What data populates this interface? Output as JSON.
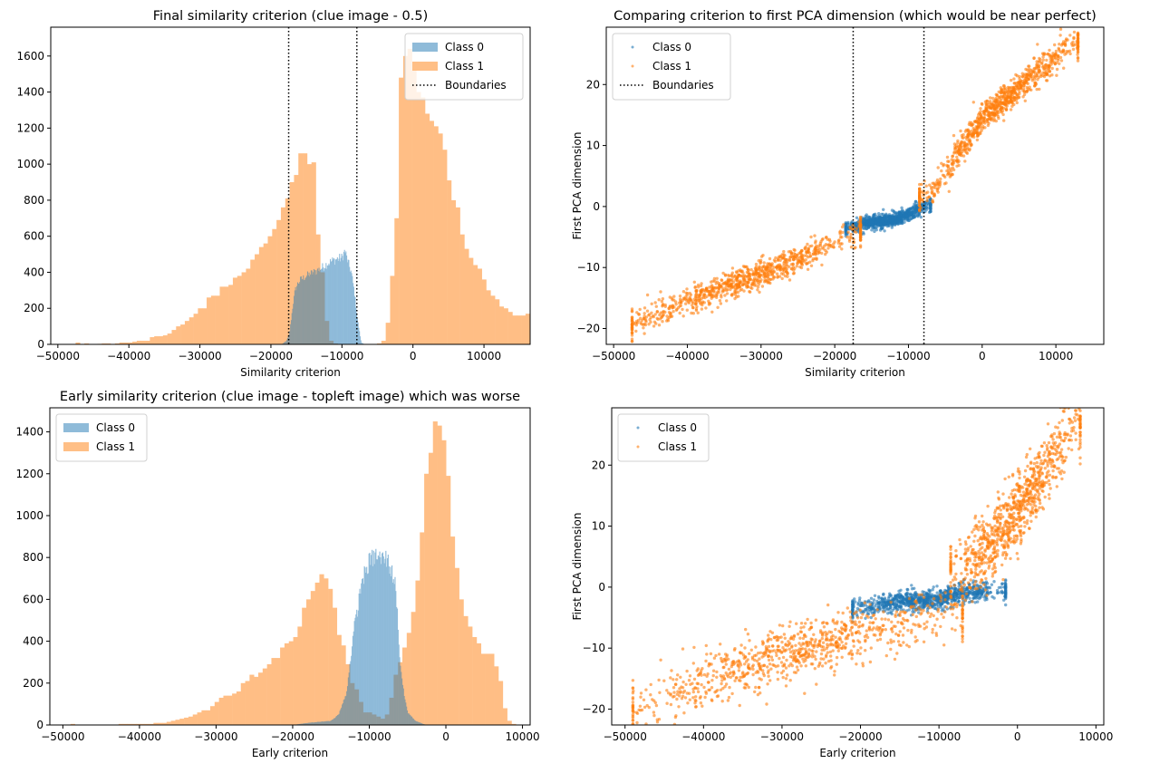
{
  "figure": {
    "layout": "2x2 subplots"
  },
  "colors": {
    "class0": "#1f77b4",
    "class1": "#ff7f0e",
    "boundary": "#000000"
  },
  "chart_data": [
    {
      "id": "final-hist",
      "type": "bar",
      "subtype": "overlapping-histogram",
      "title": "Final similarity criterion (clue image - 0.5)",
      "xlabel": "Similarity criterion",
      "ylabel": "",
      "xlim": [
        -51000,
        16500
      ],
      "ylim": [
        0,
        1760
      ],
      "xticks": [
        -50000,
        -40000,
        -30000,
        -20000,
        -10000,
        0,
        10000
      ],
      "xtick_labels": [
        "−50000",
        "−40000",
        "−30000",
        "−20000",
        "−10000",
        "0",
        "10000"
      ],
      "yticks": [
        0,
        200,
        400,
        600,
        800,
        1000,
        1200,
        1400,
        1600
      ],
      "ytick_labels": [
        "0",
        "200",
        "400",
        "600",
        "800",
        "1000",
        "1200",
        "1400",
        "1600"
      ],
      "grid": false,
      "legend": {
        "position": "top-right",
        "entries": [
          "Class 0",
          "Class 1",
          "Boundaries"
        ]
      },
      "boundaries": [
        -17500,
        -7900
      ],
      "series": [
        {
          "name": "Class 1",
          "color": "#ff7f0e",
          "alpha": 0.5,
          "bin_start": -47500,
          "bin_width": 615,
          "values": [
            10,
            0,
            5,
            0,
            0,
            3,
            5,
            5,
            0,
            5,
            10,
            10,
            10,
            15,
            20,
            20,
            20,
            40,
            45,
            45,
            50,
            60,
            80,
            100,
            110,
            130,
            150,
            170,
            200,
            200,
            260,
            270,
            270,
            320,
            320,
            330,
            370,
            380,
            400,
            420,
            470,
            500,
            540,
            560,
            600,
            640,
            690,
            760,
            810,
            900,
            940,
            1060,
            1060,
            1000,
            1010,
            610,
            400,
            130,
            20,
            5,
            0,
            0,
            0,
            0,
            0,
            0,
            0,
            0,
            0,
            5,
            20,
            120,
            380,
            700,
            1480,
            1600,
            1640,
            1520,
            1400,
            1370,
            1280,
            1240,
            1210,
            1170,
            1080,
            910,
            800,
            760,
            610,
            530,
            480,
            440,
            420,
            360,
            300,
            270,
            250,
            210,
            200,
            180,
            160,
            160,
            160,
            170,
            180,
            160,
            170,
            170,
            180,
            190,
            190,
            160,
            120,
            100,
            70,
            50,
            20,
            0,
            0,
            0,
            0
          ]
        },
        {
          "name": "Class 0",
          "color": "#1f77b4",
          "alpha": 0.5,
          "bin_start": -18500,
          "bin_width": 100,
          "profile": [
            [
              -18500,
              0
            ],
            [
              -17800,
              20
            ],
            [
              -17400,
              60
            ],
            [
              -16900,
              220
            ],
            [
              -16600,
              300
            ],
            [
              -16200,
              340
            ],
            [
              -15800,
              360
            ],
            [
              -15000,
              380
            ],
            [
              -14000,
              400
            ],
            [
              -13000,
              420
            ],
            [
              -12000,
              450
            ],
            [
              -11000,
              470
            ],
            [
              -10000,
              480
            ],
            [
              -9600,
              520
            ],
            [
              -9200,
              460
            ],
            [
              -8700,
              400
            ],
            [
              -8300,
              300
            ],
            [
              -7800,
              130
            ],
            [
              -7300,
              10
            ],
            [
              -6800,
              0
            ]
          ]
        }
      ]
    },
    {
      "id": "final-scatter",
      "type": "scatter",
      "title": "Comparing criterion to first PCA dimension (which would be near perfect)",
      "xlabel": "Similarity criterion",
      "ylabel": "First PCA dimension",
      "xlim": [
        -51000,
        16500
      ],
      "ylim": [
        -22.6,
        29.4
      ],
      "xticks": [
        -50000,
        -40000,
        -30000,
        -20000,
        -10000,
        0,
        10000
      ],
      "xtick_labels": [
        "−50000",
        "−40000",
        "−30000",
        "−20000",
        "−10000",
        "0",
        "10000"
      ],
      "yticks": [
        -20,
        -10,
        0,
        10,
        20
      ],
      "ytick_labels": [
        "−20",
        "−10",
        "0",
        "10",
        "20"
      ],
      "grid": false,
      "legend": {
        "position": "top-left",
        "entries": [
          "Class 0",
          "Class 1",
          "Boundaries"
        ]
      },
      "boundaries": [
        -17500,
        -7900
      ],
      "series": [
        {
          "name": "Class 1",
          "color": "#ff7f0e",
          "marker_alpha": 0.6,
          "clusters": [
            {
              "x_range": [
                -47500,
                -16500
              ],
              "center_line": [
                [
                  -47500,
                  -19.5
                ],
                [
                  -40000,
                  -15.5
                ],
                [
                  -30000,
                  -11
                ],
                [
                  -20000,
                  -6.2
                ],
                [
                  -16500,
                  -4
                ]
              ],
              "y_spread": 1.1
            },
            {
              "x_range": [
                -8500,
                13000
              ],
              "center_line": [
                [
                  -8500,
                  1.5
                ],
                [
                  -6000,
                  3.5
                ],
                [
                  -3000,
                  9.5
                ],
                [
                  0,
                  14.5
                ],
                [
                  5000,
                  19.5
                ],
                [
                  10000,
                  24.5
                ],
                [
                  12500,
                  26.8
                ]
              ],
              "y_spread": 1.2
            }
          ]
        },
        {
          "name": "Class 0",
          "color": "#1f77b4",
          "marker_alpha": 0.6,
          "clusters": [
            {
              "x_range": [
                -18500,
                -7000
              ],
              "center_line": [
                [
                  -18500,
                  -3.6
                ],
                [
                  -16000,
                  -2.8
                ],
                [
                  -12000,
                  -2.2
                ],
                [
                  -10000,
                  -1.3
                ],
                [
                  -7500,
                  0.2
                ]
              ],
              "y_spread": 0.5
            }
          ]
        }
      ]
    },
    {
      "id": "early-hist",
      "type": "bar",
      "subtype": "overlapping-histogram",
      "title": "Early similarity criterion (clue image - topleft image) which was worse",
      "xlabel": "Early criterion",
      "ylabel": "",
      "xlim": [
        -51700,
        11000
      ],
      "ylim": [
        0,
        1515
      ],
      "xticks": [
        -50000,
        -40000,
        -30000,
        -20000,
        -10000,
        0,
        10000
      ],
      "xtick_labels": [
        "−50000",
        "−40000",
        "−30000",
        "−20000",
        "−10000",
        "0",
        "10000"
      ],
      "yticks": [
        0,
        200,
        400,
        600,
        800,
        1000,
        1200,
        1400
      ],
      "ytick_labels": [
        "0",
        "200",
        "400",
        "600",
        "800",
        "1000",
        "1200",
        "1400"
      ],
      "grid": false,
      "legend": {
        "position": "top-left",
        "entries": [
          "Class 0",
          "Class 1"
        ]
      },
      "series": [
        {
          "name": "Class 1",
          "color": "#ff7f0e",
          "alpha": 0.5,
          "bin_start": -49000,
          "bin_width": 570,
          "values": [
            5,
            0,
            0,
            0,
            0,
            0,
            0,
            0,
            0,
            0,
            0,
            5,
            5,
            5,
            5,
            5,
            5,
            5,
            5,
            10,
            10,
            10,
            15,
            20,
            25,
            30,
            35,
            40,
            50,
            60,
            70,
            70,
            90,
            110,
            130,
            140,
            140,
            150,
            160,
            200,
            210,
            240,
            230,
            250,
            270,
            290,
            320,
            320,
            370,
            390,
            400,
            420,
            470,
            560,
            600,
            640,
            680,
            720,
            700,
            650,
            560,
            430,
            380,
            290,
            200,
            170,
            110,
            60,
            60,
            50,
            40,
            30,
            50,
            130,
            240,
            300,
            370,
            440,
            540,
            690,
            920,
            1200,
            1300,
            1450,
            1430,
            1360,
            1190,
            900,
            750,
            600,
            520,
            470,
            420,
            390,
            340,
            340,
            340,
            280,
            210,
            80,
            20,
            5
          ]
        },
        {
          "name": "Class 0",
          "color": "#1f77b4",
          "alpha": 0.5,
          "bin_start": -20000,
          "bin_width": 100,
          "profile": [
            [
              -20000,
              0
            ],
            [
              -18000,
              10
            ],
            [
              -15000,
              20
            ],
            [
              -14000,
              50
            ],
            [
              -13000,
              150
            ],
            [
              -12500,
              300
            ],
            [
              -12000,
              460
            ],
            [
              -11500,
              560
            ],
            [
              -11000,
              690
            ],
            [
              -10500,
              730
            ],
            [
              -10000,
              780
            ],
            [
              -9500,
              800
            ],
            [
              -9000,
              810
            ],
            [
              -8500,
              790
            ],
            [
              -8000,
              800
            ],
            [
              -7500,
              780
            ],
            [
              -7000,
              720
            ],
            [
              -6600,
              680
            ],
            [
              -6300,
              500
            ],
            [
              -6000,
              300
            ],
            [
              -5500,
              150
            ],
            [
              -5000,
              60
            ],
            [
              -4000,
              20
            ],
            [
              -3000,
              5
            ],
            [
              -2500,
              0
            ]
          ]
        }
      ]
    },
    {
      "id": "early-scatter",
      "type": "scatter",
      "title": "",
      "xlabel": "Early criterion",
      "ylabel": "First PCA dimension",
      "xlim": [
        -51700,
        11000
      ],
      "ylim": [
        -22.6,
        29.4
      ],
      "xticks": [
        -50000,
        -40000,
        -30000,
        -20000,
        -10000,
        0,
        10000
      ],
      "xtick_labels": [
        "−50000",
        "−40000",
        "−30000",
        "−20000",
        "−10000",
        "0",
        "10000"
      ],
      "yticks": [
        -20,
        -10,
        0,
        10,
        20
      ],
      "ytick_labels": [
        "−20",
        "−10",
        "0",
        "10",
        "20"
      ],
      "grid": false,
      "legend": {
        "position": "top-left",
        "entries": [
          "Class 0",
          "Class 1"
        ]
      },
      "series": [
        {
          "name": "Class 1",
          "color": "#ff7f0e",
          "marker_alpha": 0.6,
          "clusters": [
            {
              "x_range": [
                -49000,
                -7000
              ],
              "center_line": [
                [
                  -49000,
                  -20
                ],
                [
                  -40000,
                  -15.5
                ],
                [
                  -30000,
                  -11
                ],
                [
                  -20000,
                  -7.5
                ],
                [
                  -12000,
                  -5
                ],
                [
                  -7000,
                  -4.5
                ]
              ],
              "y_spread": 2.2
            },
            {
              "x_range": [
                -8500,
                8000
              ],
              "center_line": [
                [
                  -8500,
                  2
                ],
                [
                  -6000,
                  4
                ],
                [
                  -3000,
                  7.5
                ],
                [
                  0,
                  12.5
                ],
                [
                  3000,
                  18
                ],
                [
                  6000,
                  24
                ],
                [
                  7500,
                  27
                ]
              ],
              "y_spread": 2.8
            }
          ]
        },
        {
          "name": "Class 0",
          "color": "#1f77b4",
          "marker_alpha": 0.6,
          "clusters": [
            {
              "x_range": [
                -21000,
                -1500
              ],
              "center_line": [
                [
                  -21000,
                  -3.5
                ],
                [
                  -15000,
                  -2.5
                ],
                [
                  -10000,
                  -2
                ],
                [
                  -7000,
                  -1
                ],
                [
                  -2000,
                  -0.5
                ]
              ],
              "y_spread": 0.8
            }
          ]
        }
      ]
    }
  ]
}
